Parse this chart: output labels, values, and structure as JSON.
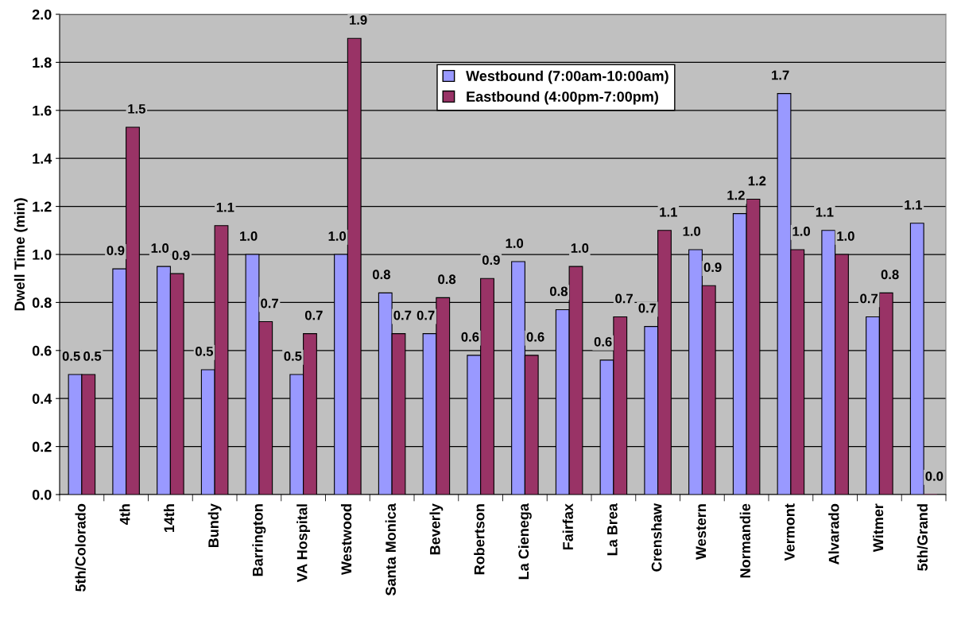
{
  "chart_data": {
    "type": "bar",
    "ylabel": "Dwell Time (min)",
    "categories": [
      "5th/Colorado",
      "4th",
      "14th",
      "Bundy",
      "Barrington",
      "VA Hospital",
      "Westwood",
      "Santa Monica",
      "Beverly",
      "Robertson",
      "La Cienega",
      "Fairfax",
      "La Brea",
      "Crenshaw",
      "Western",
      "Normandie",
      "Vermont",
      "Alvarado",
      "Witmer",
      "5th/Grand"
    ],
    "series": [
      {
        "name": "Westbound (7:00am-10:00am)",
        "color": "#9999ff",
        "values": [
          0.5,
          0.94,
          0.95,
          0.52,
          1.0,
          0.5,
          1.0,
          0.84,
          0.67,
          0.58,
          0.97,
          0.77,
          0.56,
          0.7,
          1.02,
          1.17,
          1.67,
          1.1,
          0.74,
          1.13
        ],
        "value_labels": [
          "0.5",
          "0.9",
          "1.0",
          "0.5",
          "1.0",
          "0.5",
          "1.0",
          "0.8",
          "0.7",
          "0.6",
          "1.0",
          "0.8",
          "0.6",
          "0.7",
          "1.0",
          "1.2",
          "1.7",
          "1.1",
          "0.7",
          "1.1"
        ]
      },
      {
        "name": "Eastbound (4:00pm-7:00pm)",
        "color": "#993366",
        "values": [
          0.5,
          1.53,
          0.92,
          1.12,
          0.72,
          0.67,
          1.9,
          0.67,
          0.82,
          0.9,
          0.58,
          0.95,
          0.74,
          1.1,
          0.87,
          1.23,
          1.02,
          1.0,
          0.84,
          0
        ],
        "value_labels": [
          "0.5",
          "1.5",
          "0.9",
          "1.1",
          "0.7",
          "0.7",
          "1.9",
          "0.7",
          "0.8",
          "0.9",
          "0.6",
          "1.0",
          "0.7",
          "1.1",
          "0.9",
          "1.2",
          "1.0",
          "1.0",
          "0.8",
          "0.0"
        ]
      }
    ],
    "ylim": [
      0,
      2.0
    ],
    "yticks": [
      {
        "value": 0,
        "label": "0.0"
      },
      {
        "value": 0.2,
        "label": "0.2"
      },
      {
        "value": 0.4,
        "label": "0.4"
      },
      {
        "value": 0.6,
        "label": "0.6"
      },
      {
        "value": 0.8,
        "label": "0.8"
      },
      {
        "value": 1.0,
        "label": "1.0"
      },
      {
        "value": 1.2,
        "label": "1.2"
      },
      {
        "value": 1.4,
        "label": "1.4"
      },
      {
        "value": 1.6,
        "label": "1.6"
      },
      {
        "value": 1.8,
        "label": "1.8"
      },
      {
        "value": 2.0,
        "label": "2.0"
      }
    ],
    "grid": "y",
    "legend": "top"
  }
}
